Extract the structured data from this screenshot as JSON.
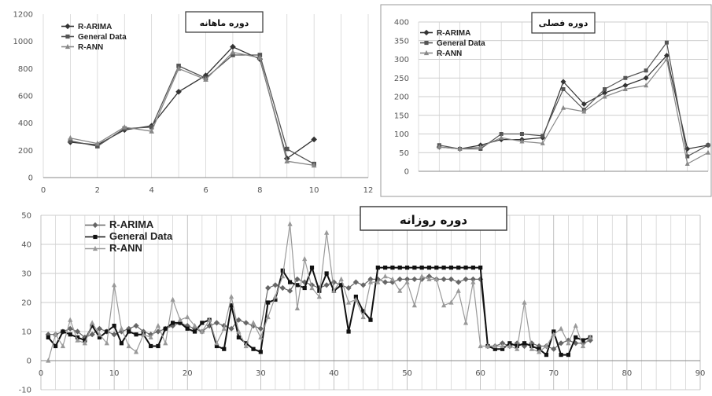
{
  "chart_data": [
    {
      "type": "line",
      "title": "دوره ماهانه",
      "xlim": [
        0,
        12
      ],
      "ylim": [
        0,
        1200
      ],
      "xticks": [
        0,
        2,
        4,
        6,
        8,
        10,
        12
      ],
      "yticks": [
        0,
        200,
        400,
        600,
        800,
        1000,
        1200
      ],
      "grid": "vertical",
      "legend_position": "top-left",
      "x": [
        1,
        2,
        3,
        4,
        5,
        6,
        7,
        8,
        9,
        10
      ],
      "series": [
        {
          "name": "R-ARIMA",
          "color": "#333333",
          "marker": "diamond",
          "values": [
            260,
            240,
            350,
            380,
            630,
            750,
            960,
            870,
            140,
            280
          ]
        },
        {
          "name": "General Data",
          "color": "#555555",
          "marker": "square",
          "values": [
            270,
            230,
            360,
            370,
            820,
            730,
            900,
            900,
            210,
            100
          ]
        },
        {
          "name": "R-ANN",
          "color": "#888888",
          "marker": "triangle",
          "values": [
            290,
            250,
            370,
            340,
            800,
            720,
            920,
            880,
            120,
            90
          ]
        }
      ]
    },
    {
      "type": "line",
      "title": "دوره فصلی",
      "xlim": [
        0,
        14
      ],
      "ylim": [
        0,
        400
      ],
      "yticks": [
        0,
        50,
        100,
        150,
        200,
        250,
        300,
        350,
        400
      ],
      "grid": "both",
      "legend_position": "top-left",
      "x": [
        1,
        2,
        3,
        4,
        5,
        6,
        7,
        8,
        9,
        10,
        11,
        12,
        13,
        14
      ],
      "series": [
        {
          "name": "R-ARIMA",
          "color": "#333333",
          "marker": "diamond",
          "values": [
            65,
            60,
            70,
            85,
            85,
            90,
            240,
            180,
            210,
            230,
            250,
            310,
            60,
            70
          ]
        },
        {
          "name": "General Data",
          "color": "#555555",
          "marker": "square",
          "values": [
            70,
            60,
            60,
            100,
            100,
            95,
            220,
            165,
            220,
            250,
            270,
            345,
            40,
            70
          ]
        },
        {
          "name": "R-ANN",
          "color": "#888888",
          "marker": "triangle",
          "values": [
            65,
            60,
            65,
            90,
            80,
            75,
            170,
            160,
            200,
            220,
            230,
            300,
            20,
            50
          ]
        }
      ]
    },
    {
      "type": "line",
      "title": "دوره روزانه",
      "xlim": [
        0,
        90
      ],
      "ylim": [
        -10,
        50
      ],
      "xticks": [
        0,
        10,
        20,
        30,
        40,
        50,
        60,
        70,
        80,
        90
      ],
      "yticks": [
        -10,
        0,
        10,
        20,
        30,
        40,
        50
      ],
      "grid": "both",
      "legend_position": "top-left",
      "x": [
        1,
        2,
        3,
        4,
        5,
        6,
        7,
        8,
        9,
        10,
        11,
        12,
        13,
        14,
        15,
        16,
        17,
        18,
        19,
        20,
        21,
        22,
        23,
        24,
        25,
        26,
        27,
        28,
        29,
        30,
        31,
        32,
        33,
        34,
        35,
        36,
        37,
        38,
        39,
        40,
        41,
        42,
        43,
        44,
        45,
        46,
        47,
        48,
        49,
        50,
        51,
        52,
        53,
        54,
        55,
        56,
        57,
        58,
        59,
        60,
        61,
        62,
        63,
        64,
        65,
        66,
        67,
        68,
        69,
        70,
        71,
        72,
        73,
        74,
        75
      ],
      "series": [
        {
          "name": "R-ARIMA",
          "color": "#666666",
          "marker": "diamond",
          "values": [
            9,
            9,
            10,
            11,
            10,
            8,
            9,
            11,
            10,
            9,
            10,
            11,
            12,
            10,
            9,
            10,
            11,
            12,
            13,
            12,
            11,
            10,
            12,
            13,
            12,
            11,
            14,
            13,
            12,
            11,
            25,
            26,
            25,
            24,
            28,
            27,
            26,
            25,
            26,
            27,
            26,
            25,
            27,
            26,
            28,
            28,
            27,
            27,
            28,
            28,
            28,
            28,
            29,
            28,
            28,
            28,
            27,
            28,
            28,
            28,
            5,
            5,
            6,
            5,
            6,
            5,
            6,
            5,
            5,
            4,
            6,
            7,
            6,
            6,
            7
          ]
        },
        {
          "name": "General Data",
          "color": "#111111",
          "marker": "square",
          "values": [
            8,
            5,
            10,
            9,
            8,
            7,
            12,
            8,
            10,
            12,
            6,
            10,
            9,
            9,
            5,
            5,
            11,
            13,
            13,
            11,
            10,
            13,
            14,
            5,
            4,
            19,
            8,
            6,
            4,
            3,
            20,
            21,
            31,
            27,
            26,
            25,
            32,
            24,
            30,
            24,
            26,
            10,
            22,
            17,
            14,
            32,
            32,
            32,
            32,
            32,
            32,
            32,
            32,
            32,
            32,
            32,
            32,
            32,
            32,
            32,
            5,
            4,
            4,
            6,
            5,
            6,
            5,
            4,
            2,
            10,
            2,
            2,
            8,
            7,
            8
          ]
        },
        {
          "name": "R-ANN",
          "color": "#999999",
          "marker": "triangle",
          "values": [
            0,
            9,
            5,
            14,
            7,
            6,
            13,
            9,
            6,
            26,
            11,
            5,
            3,
            9,
            8,
            12,
            6,
            21,
            14,
            15,
            12,
            10,
            14,
            6,
            11,
            22,
            10,
            5,
            13,
            8,
            15,
            22,
            29,
            47,
            18,
            35,
            25,
            22,
            44,
            24,
            28,
            20,
            21,
            15,
            27,
            27,
            29,
            28,
            24,
            27,
            19,
            29,
            28,
            28,
            19,
            20,
            24,
            13,
            27,
            5,
            5,
            5,
            5,
            5,
            4,
            20,
            4,
            3,
            5,
            9,
            11,
            6,
            12,
            5,
            8
          ]
        }
      ]
    }
  ]
}
